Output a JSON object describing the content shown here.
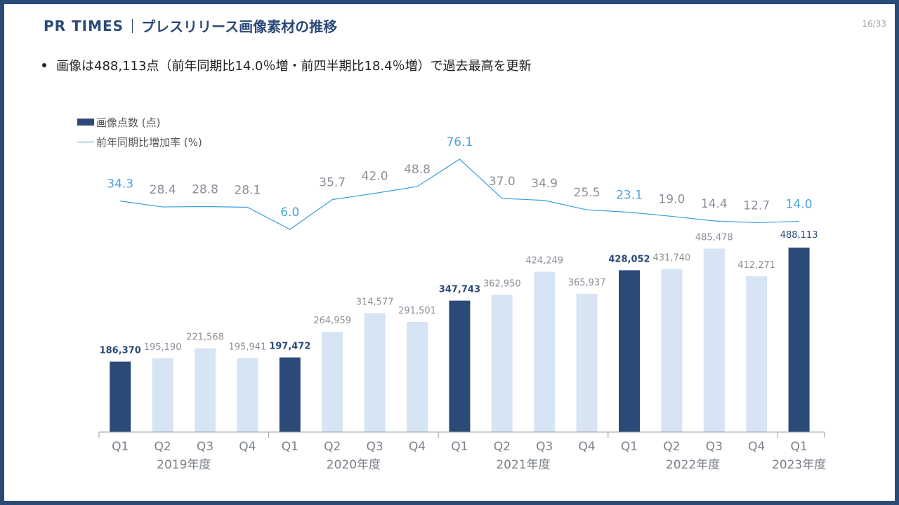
{
  "header": {
    "brand": "PR TIMES",
    "title": "プレスリリース画像素材の推移"
  },
  "page_number": "16/33",
  "bullet": "画像は488,113点（前年同期比14.0％増・前四半期比18.4％増）で過去最高を更新",
  "legend": {
    "bars": "画像点数 (点)",
    "line": "前年同期比増加率 (%)"
  },
  "colors": {
    "frame": "#2b4a78",
    "highlight_bar": "#2b4a78",
    "normal_bar": "#d6e4f3",
    "line": "#3a9fe0",
    "highlight_rate": "#4aa3e0",
    "normal_rate": "#8a9099",
    "highlight_value": "#2b4a78",
    "normal_value": "#8a9099"
  },
  "chart_data": {
    "type": "bar+line",
    "categories": [
      "Q1",
      "Q2",
      "Q3",
      "Q4",
      "Q1",
      "Q2",
      "Q3",
      "Q4",
      "Q1",
      "Q2",
      "Q3",
      "Q4",
      "Q1",
      "Q2",
      "Q3",
      "Q4",
      "Q1"
    ],
    "year_groups": [
      {
        "label": "2019年度",
        "start": 0,
        "count": 4
      },
      {
        "label": "2020年度",
        "start": 4,
        "count": 4
      },
      {
        "label": "2021年度",
        "start": 8,
        "count": 4
      },
      {
        "label": "2022年度",
        "start": 12,
        "count": 4
      },
      {
        "label": "2023年度",
        "start": 16,
        "count": 1
      }
    ],
    "series": [
      {
        "name": "画像点数 (点)",
        "type": "bar",
        "values": [
          186370,
          195190,
          221568,
          195941,
          197472,
          264959,
          314577,
          291501,
          347743,
          362950,
          424249,
          365937,
          428052,
          431740,
          485478,
          412271,
          488113
        ],
        "labels": [
          "186,370",
          "195,190",
          "221,568",
          "195,941",
          "197,472",
          "264,959",
          "314,577",
          "291,501",
          "347,743",
          "362,950",
          "424,249",
          "365,937",
          "428,052",
          "431,740",
          "485,478",
          "412,271",
          "488,113"
        ]
      },
      {
        "name": "前年同期比増加率 (%)",
        "type": "line",
        "values": [
          34.3,
          28.4,
          28.8,
          28.1,
          6.0,
          35.7,
          42.0,
          48.8,
          76.1,
          37.0,
          34.9,
          25.5,
          23.1,
          19.0,
          14.4,
          12.7,
          14.0
        ],
        "labels": [
          "34.3",
          "28.4",
          "28.8",
          "28.1",
          "6.0",
          "35.7",
          "42.0",
          "48.8",
          "76.1",
          "37.0",
          "34.9",
          "25.5",
          "23.1",
          "19.0",
          "14.4",
          "12.7",
          "14.0"
        ]
      }
    ],
    "highlight_indices": [
      0,
      4,
      8,
      12,
      16
    ],
    "bar_ylim": [
      0,
      500000
    ]
  }
}
